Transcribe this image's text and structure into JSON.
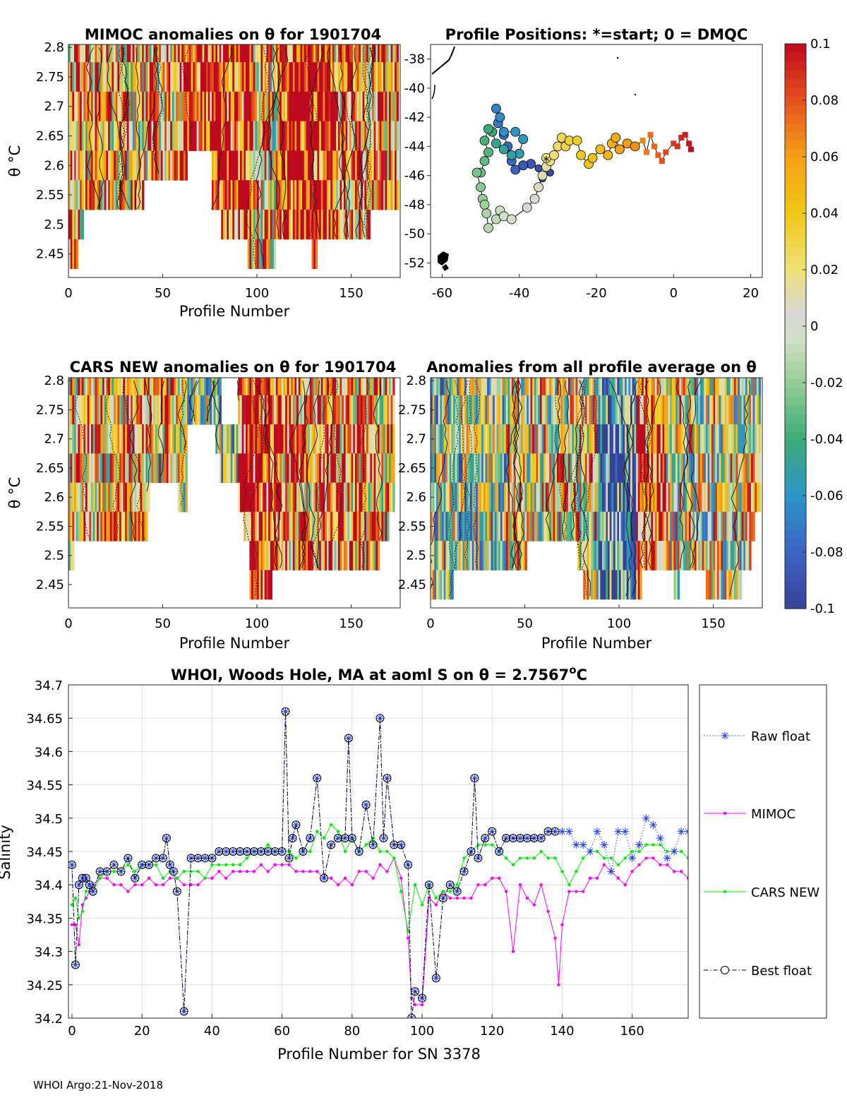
{
  "panels": {
    "mimoc": {
      "title": "MIMOC anomalies on θ  for 1901704",
      "ylabel": "θ °C",
      "xlabel": "Profile Number",
      "xlim": [
        0,
        176
      ],
      "ylim": [
        2.41,
        2.805
      ],
      "xticks": [
        "0",
        "50",
        "100",
        "150"
      ],
      "yticks": [
        "2.45",
        "2.5",
        "2.55",
        "2.6",
        "2.65",
        "2.7",
        "2.75",
        "2.8"
      ]
    },
    "positions": {
      "title": "Profile Positions: *=start; 0 = DMQC",
      "xlim": [
        -63,
        23
      ],
      "ylim": [
        -53,
        -37
      ],
      "xticks": [
        "-60",
        "-40",
        "-20",
        "0",
        "20"
      ],
      "yticks": [
        "-52",
        "-50",
        "-48",
        "-46",
        "-44",
        "-42",
        "-40",
        "-38"
      ]
    },
    "cars": {
      "title": "CARS NEW anomalies on θ for 1901704",
      "ylabel": "θ °C",
      "xlabel": "Profile Number",
      "xlim": [
        0,
        176
      ],
      "ylim": [
        2.41,
        2.805
      ],
      "xticks": [
        "0",
        "50",
        "100",
        "150"
      ],
      "yticks": [
        "2.45",
        "2.5",
        "2.55",
        "2.6",
        "2.65",
        "2.7",
        "2.75",
        "2.8"
      ]
    },
    "allavg": {
      "title": "Anomalies from all profile average on θ",
      "xlabel": "Profile Number",
      "xlim": [
        0,
        176
      ],
      "ylim": [
        2.41,
        2.805
      ],
      "xticks": [
        "0",
        "50",
        "100",
        "150"
      ],
      "yticks": [
        "2.45",
        "2.5",
        "2.55",
        "2.6",
        "2.65",
        "2.7",
        "2.75",
        "2.8"
      ]
    }
  },
  "colorbar": {
    "ticks": [
      "0.1",
      "0.08",
      "0.06",
      "0.04",
      "0.02",
      "0",
      "-0.02",
      "-0.04",
      "-0.06",
      "-0.08",
      "-0.1"
    ],
    "min": -0.1,
    "max": 0.1
  },
  "chart_data": {
    "type": "line",
    "title": "WHOI, Woods Hole, MA at aoml S on θ = 2.7567°C",
    "xlabel": "Profile Number for SN 3378",
    "ylabel": "Salinity",
    "xlim": [
      -1,
      176
    ],
    "ylim": [
      34.2,
      34.7
    ],
    "xticks": [
      "0",
      "20",
      "40",
      "60",
      "80",
      "100",
      "120",
      "140",
      "160"
    ],
    "yticks": [
      "34.2",
      "34.25",
      "34.3",
      "34.35",
      "34.4",
      "34.45",
      "34.5",
      "34.55",
      "34.6",
      "34.65",
      "34.7"
    ],
    "grid": true,
    "legend_position": "right-outside",
    "series": [
      {
        "name": "Raw float",
        "color": "#1f3cff",
        "style": "dotted-star",
        "x": [
          0,
          1,
          2,
          3,
          4,
          5,
          6,
          8,
          10,
          12,
          14,
          16,
          18,
          20,
          22,
          24,
          26,
          27,
          28,
          29,
          30,
          32,
          34,
          36,
          38,
          40,
          42,
          44,
          46,
          48,
          50,
          52,
          54,
          56,
          58,
          60,
          61,
          62,
          63,
          64,
          66,
          68,
          70,
          72,
          74,
          76,
          78,
          79,
          80,
          82,
          84,
          86,
          88,
          89,
          90,
          92,
          94,
          96,
          97,
          98,
          100,
          102,
          104,
          106,
          108,
          110,
          112,
          114,
          115,
          116,
          118,
          120,
          122,
          124,
          126,
          128,
          130,
          132,
          134,
          136,
          138,
          140,
          142,
          144,
          146,
          148,
          150,
          152,
          154,
          156,
          158,
          160,
          162,
          164,
          166,
          168,
          170,
          172,
          174,
          176
        ],
        "values": [
          34.43,
          34.28,
          34.4,
          34.41,
          34.41,
          34.4,
          34.39,
          34.42,
          34.42,
          34.43,
          34.42,
          34.44,
          34.41,
          34.43,
          34.43,
          34.44,
          34.44,
          34.47,
          34.43,
          34.42,
          34.39,
          34.21,
          34.44,
          34.44,
          34.44,
          34.44,
          34.45,
          34.45,
          34.45,
          34.45,
          34.45,
          34.45,
          34.45,
          34.45,
          34.45,
          34.45,
          34.66,
          34.44,
          34.47,
          34.49,
          34.45,
          34.47,
          34.56,
          34.41,
          34.46,
          34.47,
          34.47,
          34.62,
          34.47,
          34.45,
          34.52,
          34.46,
          34.65,
          34.47,
          34.56,
          34.46,
          34.46,
          34.43,
          34.2,
          34.24,
          34.23,
          34.4,
          34.26,
          34.38,
          34.4,
          34.39,
          34.42,
          34.45,
          34.56,
          34.44,
          34.47,
          34.48,
          34.45,
          34.47,
          34.47,
          34.47,
          34.47,
          34.47,
          34.47,
          34.48,
          34.48,
          34.48,
          34.48,
          34.46,
          34.46,
          34.45,
          34.48,
          34.46,
          34.42,
          34.48,
          34.48,
          34.44,
          34.46,
          34.5,
          34.49,
          34.47,
          34.44,
          34.45,
          34.48,
          34.48
        ]
      },
      {
        "name": "MIMOC",
        "color": "#ff00ff",
        "style": "solid-dot",
        "x": [
          0,
          1,
          2,
          3,
          4,
          5,
          6,
          8,
          10,
          12,
          14,
          16,
          18,
          20,
          22,
          24,
          26,
          28,
          30,
          32,
          34,
          36,
          38,
          40,
          42,
          44,
          46,
          48,
          50,
          52,
          54,
          56,
          58,
          60,
          62,
          64,
          66,
          68,
          70,
          72,
          74,
          76,
          78,
          80,
          82,
          84,
          86,
          88,
          90,
          92,
          94,
          96,
          97,
          98,
          100,
          102,
          104,
          106,
          108,
          110,
          112,
          114,
          116,
          118,
          120,
          122,
          124,
          126,
          128,
          130,
          132,
          134,
          136,
          138,
          139,
          140,
          142,
          144,
          146,
          148,
          150,
          152,
          154,
          156,
          158,
          160,
          162,
          164,
          166,
          168,
          170,
          172,
          174,
          176
        ],
        "values": [
          34.34,
          34.34,
          34.31,
          34.37,
          34.38,
          34.39,
          34.4,
          34.41,
          34.41,
          34.4,
          34.4,
          34.39,
          34.4,
          34.4,
          34.41,
          34.4,
          34.4,
          34.41,
          34.41,
          34.4,
          34.4,
          34.4,
          34.41,
          34.41,
          34.42,
          34.41,
          34.42,
          34.42,
          34.42,
          34.42,
          34.43,
          34.42,
          34.43,
          34.43,
          34.43,
          34.42,
          34.42,
          34.42,
          34.42,
          34.41,
          34.41,
          34.4,
          34.41,
          34.4,
          34.42,
          34.42,
          34.41,
          34.43,
          34.42,
          34.44,
          34.41,
          34.32,
          34.23,
          34.22,
          34.22,
          34.38,
          34.37,
          34.39,
          34.38,
          34.38,
          34.38,
          34.38,
          34.4,
          34.4,
          34.41,
          34.41,
          34.39,
          34.3,
          34.4,
          34.38,
          34.37,
          34.4,
          34.36,
          34.32,
          34.25,
          34.34,
          34.39,
          34.39,
          34.39,
          34.41,
          34.41,
          34.43,
          34.42,
          34.41,
          34.4,
          34.42,
          34.43,
          34.44,
          34.44,
          34.43,
          34.43,
          34.42,
          34.42,
          34.41
        ]
      },
      {
        "name": "CARS NEW",
        "color": "#00ee00",
        "style": "solid-dot",
        "x": [
          0,
          1,
          2,
          3,
          4,
          5,
          6,
          8,
          10,
          12,
          14,
          16,
          18,
          20,
          22,
          24,
          26,
          28,
          30,
          32,
          34,
          36,
          38,
          40,
          42,
          44,
          46,
          48,
          50,
          52,
          54,
          56,
          58,
          60,
          62,
          64,
          66,
          68,
          70,
          72,
          74,
          76,
          78,
          80,
          82,
          84,
          86,
          88,
          90,
          92,
          94,
          96,
          98,
          100,
          102,
          104,
          106,
          108,
          110,
          112,
          114,
          116,
          118,
          120,
          122,
          124,
          126,
          128,
          130,
          132,
          134,
          136,
          138,
          140,
          142,
          144,
          146,
          148,
          150,
          152,
          154,
          156,
          158,
          160,
          162,
          164,
          166,
          168,
          170,
          172,
          174,
          176
        ],
        "values": [
          34.37,
          34.38,
          34.35,
          34.36,
          34.39,
          34.4,
          34.39,
          34.41,
          34.42,
          34.42,
          34.42,
          34.43,
          34.42,
          34.43,
          34.43,
          34.43,
          34.41,
          34.42,
          34.41,
          34.42,
          34.42,
          34.42,
          34.41,
          34.43,
          34.43,
          34.43,
          34.43,
          34.43,
          34.44,
          34.45,
          34.45,
          34.46,
          34.45,
          34.45,
          34.45,
          34.44,
          34.45,
          34.45,
          34.48,
          34.47,
          34.49,
          34.48,
          34.45,
          34.47,
          34.45,
          34.46,
          34.47,
          34.45,
          34.45,
          34.44,
          34.39,
          34.33,
          34.4,
          34.37,
          34.4,
          34.38,
          34.39,
          34.39,
          34.4,
          34.44,
          34.45,
          34.46,
          34.46,
          34.46,
          34.45,
          34.44,
          34.43,
          34.44,
          34.44,
          34.44,
          34.45,
          34.44,
          34.44,
          34.42,
          34.4,
          34.42,
          34.44,
          34.45,
          34.45,
          34.44,
          34.44,
          34.43,
          34.44,
          34.45,
          34.45,
          34.46,
          34.46,
          34.46,
          34.45,
          34.45,
          34.45,
          34.44
        ]
      },
      {
        "name": "Best float",
        "color": "#000000",
        "style": "dashdot-circle",
        "x": [
          0,
          1,
          2,
          3,
          4,
          5,
          6,
          8,
          10,
          12,
          14,
          16,
          18,
          20,
          22,
          24,
          26,
          27,
          28,
          29,
          30,
          32,
          34,
          36,
          38,
          40,
          42,
          44,
          46,
          48,
          50,
          52,
          54,
          56,
          58,
          60,
          61,
          62,
          63,
          64,
          66,
          68,
          70,
          72,
          74,
          76,
          78,
          79,
          80,
          82,
          84,
          86,
          88,
          89,
          90,
          92,
          94,
          96,
          97,
          98,
          100,
          102,
          104,
          106,
          108,
          110,
          112,
          114,
          115,
          116,
          118,
          120,
          122,
          124,
          126,
          128,
          130,
          132,
          134,
          136,
          138
        ],
        "values": [
          34.43,
          34.28,
          34.4,
          34.41,
          34.41,
          34.4,
          34.39,
          34.42,
          34.42,
          34.43,
          34.42,
          34.44,
          34.41,
          34.43,
          34.43,
          34.44,
          34.44,
          34.47,
          34.43,
          34.42,
          34.39,
          34.21,
          34.44,
          34.44,
          34.44,
          34.44,
          34.45,
          34.45,
          34.45,
          34.45,
          34.45,
          34.45,
          34.45,
          34.45,
          34.45,
          34.45,
          34.66,
          34.44,
          34.47,
          34.49,
          34.45,
          34.47,
          34.56,
          34.41,
          34.46,
          34.47,
          34.47,
          34.62,
          34.47,
          34.45,
          34.52,
          34.46,
          34.65,
          34.47,
          34.56,
          34.46,
          34.46,
          34.43,
          34.2,
          34.24,
          34.23,
          34.4,
          34.26,
          34.38,
          34.4,
          34.39,
          34.42,
          34.45,
          34.56,
          34.44,
          34.47,
          34.48,
          34.45,
          34.47,
          34.47,
          34.47,
          34.47,
          34.47,
          34.47,
          34.48,
          34.48
        ]
      }
    ]
  },
  "footer": "WHOI Argo:21-Nov-2018"
}
